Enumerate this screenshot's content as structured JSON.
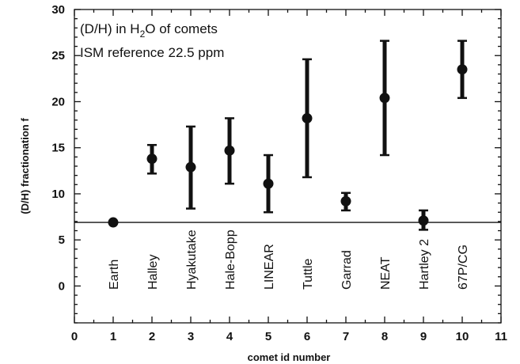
{
  "chart_data": {
    "type": "scatter",
    "xlabel": "comet id  number",
    "ylabel": "(D/H) fractionation f",
    "xlim": [
      0,
      11
    ],
    "ylim": [
      -4,
      30
    ],
    "x_ticks": [
      "0",
      "1",
      "2",
      "3",
      "4",
      "5",
      "6",
      "7",
      "8",
      "9",
      "10",
      "11"
    ],
    "y_ticks": [
      "0",
      "5",
      "10",
      "15",
      "20",
      "25",
      "30"
    ],
    "annotation_title": {
      "prefix": "(D/H) in H",
      "subscript": "2",
      "suffix": "O of comets"
    },
    "annotation_reference": "ISM reference 22.5 ppm",
    "reference_line": 6.9,
    "points": [
      {
        "x": 1,
        "label": "Earth",
        "y": 6.9,
        "err_low": 6.9,
        "err_high": 6.9
      },
      {
        "x": 2,
        "label": "Halley",
        "y": 13.8,
        "err_low": 12.2,
        "err_high": 15.3
      },
      {
        "x": 3,
        "label": "Hyakutake",
        "y": 12.9,
        "err_low": 8.4,
        "err_high": 17.3
      },
      {
        "x": 4,
        "label": "Hale-Bopp",
        "y": 14.7,
        "err_low": 11.1,
        "err_high": 18.2
      },
      {
        "x": 5,
        "label": "LINEAR",
        "y": 11.1,
        "err_low": 8.0,
        "err_high": 14.2
      },
      {
        "x": 6,
        "label": "Tuttle",
        "y": 18.2,
        "err_low": 11.8,
        "err_high": 24.6
      },
      {
        "x": 7,
        "label": "Garrad",
        "y": 9.2,
        "err_low": 8.2,
        "err_high": 10.1
      },
      {
        "x": 8,
        "label": "NEAT",
        "y": 20.4,
        "err_low": 14.2,
        "err_high": 26.6
      },
      {
        "x": 9,
        "label": "Hartley 2",
        "y": 7.1,
        "err_low": 6.1,
        "err_high": 8.2
      },
      {
        "x": 10,
        "label": "67P/CG",
        "y": 23.5,
        "err_low": 20.4,
        "err_high": 26.6
      }
    ],
    "grid": false,
    "legend": "none"
  }
}
